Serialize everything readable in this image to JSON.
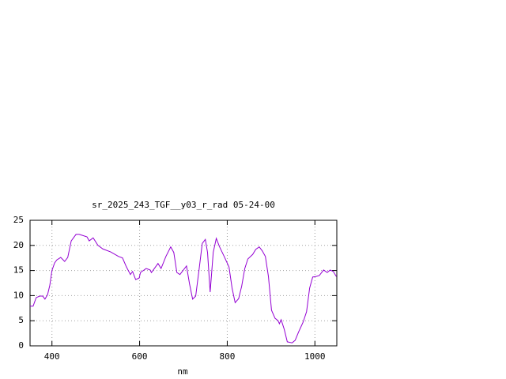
{
  "chart_data": {
    "type": "line",
    "title": "sr_2025_243_TGF__y03_r_rad 05-24-00",
    "x_label": "nm",
    "x": [
      350,
      357,
      364,
      372,
      379,
      384,
      390,
      395,
      400,
      406,
      411,
      420,
      429,
      436,
      444,
      455,
      462,
      473,
      480,
      485,
      494,
      505,
      516,
      534,
      552,
      561,
      570,
      579,
      584,
      591,
      599,
      602,
      615,
      624,
      627,
      642,
      649,
      660,
      671,
      678,
      685,
      692,
      700,
      707,
      714,
      721,
      728,
      736,
      743,
      750,
      755,
      761,
      768,
      775,
      782,
      793,
      804,
      811,
      818,
      826,
      833,
      840,
      847,
      858,
      865,
      873,
      880,
      887,
      894,
      901,
      909,
      916,
      919,
      923,
      930,
      937,
      948,
      955,
      963,
      973,
      981,
      988,
      995,
      1002,
      1010,
      1020,
      1028,
      1035,
      1042,
      1049
    ],
    "series": [
      {
        "color": "#9400d3",
        "values": [
          7.9,
          7.9,
          9.6,
          9.9,
          9.9,
          9.3,
          10.2,
          12,
          15,
          16.5,
          17.1,
          17.6,
          16.8,
          17.6,
          20.9,
          22.2,
          22.2,
          21.9,
          21.7,
          20.9,
          21.5,
          20,
          19.3,
          18.7,
          17.8,
          17.5,
          15.7,
          14.2,
          14.8,
          13.2,
          13.5,
          14.6,
          15.4,
          15.1,
          14.6,
          16.4,
          15.4,
          17.8,
          19.7,
          18.6,
          14.6,
          14.2,
          15.1,
          15.9,
          12.3,
          9.3,
          9.9,
          15.4,
          20.4,
          21.2,
          18.6,
          10.7,
          18.6,
          21.4,
          19.8,
          17.8,
          15.7,
          11.5,
          8.6,
          9.4,
          11.9,
          15.4,
          17.3,
          18.2,
          19.2,
          19.7,
          18.9,
          17.8,
          13.8,
          7.1,
          5.5,
          5,
          4.4,
          5.2,
          3.3,
          0.8,
          0.6,
          1.1,
          2.8,
          4.7,
          6.8,
          11.5,
          13.7,
          13.8,
          14,
          15.1,
          14.6,
          15.1,
          14.8,
          13.8
        ]
      }
    ],
    "xlim": [
      350,
      1050
    ],
    "ylim": [
      0,
      25
    ],
    "xticks": [
      400,
      600,
      800,
      1000
    ],
    "yticks": [
      0,
      5,
      10,
      15,
      20,
      25
    ],
    "grid": true
  }
}
